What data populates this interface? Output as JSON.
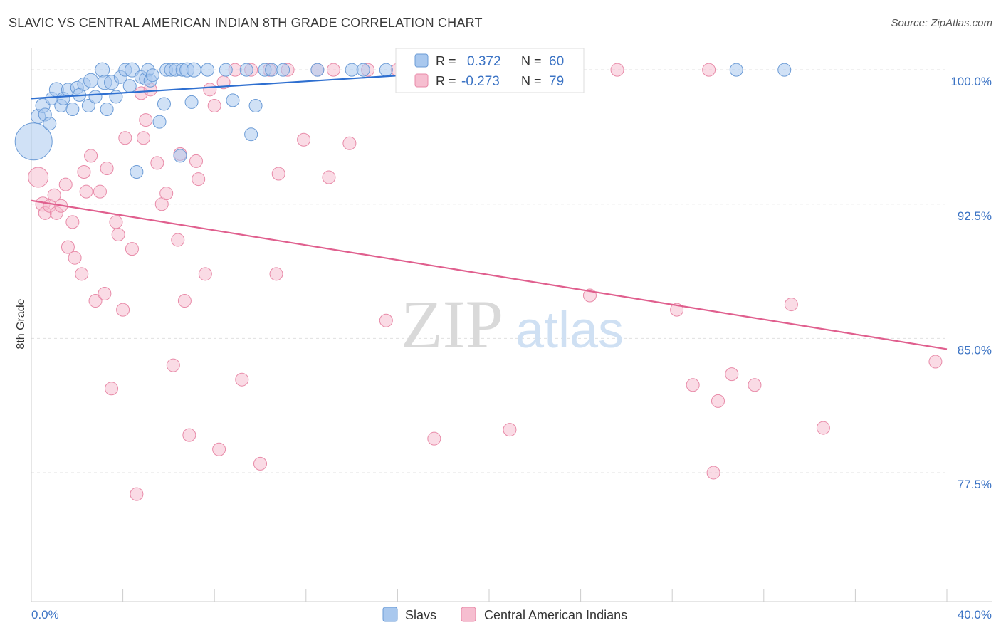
{
  "header": {
    "title": "SLAVIC VS CENTRAL AMERICAN INDIAN 8TH GRADE CORRELATION CHART",
    "source": "Source: ZipAtlas.com"
  },
  "watermark": {
    "zip": "ZIP",
    "atlas": "atlas"
  },
  "legend": {
    "r_label": "R =",
    "n_label": "N =",
    "slavs": {
      "r": "0.372",
      "n": "60"
    },
    "cai": {
      "r": "-0.273",
      "n": "79"
    }
  },
  "colors": {
    "slavs_fill": "#a9c8ee",
    "slavs_stroke": "#6b9bd6",
    "slavs_line": "#2e6fd0",
    "cai_fill": "#f6bed0",
    "cai_stroke": "#e88aa8",
    "cai_line": "#e05f8e",
    "tick_text": "#3b73c4",
    "grid": "#e0e0e0"
  },
  "chart_data": {
    "type": "scatter",
    "title": "SLAVIC VS CENTRAL AMERICAN INDIAN 8TH GRADE CORRELATION CHART",
    "xlabel": "",
    "ylabel": "8th Grade",
    "xlim": [
      0,
      40
    ],
    "ylim": [
      70.3,
      101.2
    ],
    "x_tick_labels": [
      "0.0%",
      "40.0%"
    ],
    "y_ticks": [
      {
        "value": 100.0,
        "label": "100.0%"
      },
      {
        "value": 92.5,
        "label": "92.5%"
      },
      {
        "value": 85.0,
        "label": "85.0%"
      },
      {
        "value": 77.5,
        "label": "77.5%"
      }
    ],
    "series": [
      {
        "name": "Slavs",
        "r": 0.372,
        "n": 60,
        "trend": {
          "x0": 0,
          "y0": 98.4,
          "x1": 20,
          "y1": 100.0
        },
        "points": [
          [
            0.1,
            96.0,
            26
          ],
          [
            0.3,
            97.4,
            10
          ],
          [
            0.5,
            98.0,
            10
          ],
          [
            0.6,
            97.5,
            9
          ],
          [
            0.8,
            97.0,
            9
          ],
          [
            0.9,
            98.4,
            9
          ],
          [
            1.1,
            98.9,
            10
          ],
          [
            1.3,
            98.0,
            9
          ],
          [
            1.4,
            98.4,
            9
          ],
          [
            1.6,
            98.9,
            9
          ],
          [
            1.8,
            97.8,
            9
          ],
          [
            2.0,
            99.0,
            9
          ],
          [
            2.1,
            98.6,
            9
          ],
          [
            2.3,
            99.2,
            9
          ],
          [
            2.5,
            98.0,
            9
          ],
          [
            2.6,
            99.4,
            10
          ],
          [
            2.8,
            98.5,
            9
          ],
          [
            3.1,
            100.0,
            10
          ],
          [
            3.2,
            99.3,
            10
          ],
          [
            3.3,
            97.8,
            9
          ],
          [
            3.5,
            99.3,
            10
          ],
          [
            3.7,
            98.5,
            9
          ],
          [
            3.9,
            99.6,
            9
          ],
          [
            4.1,
            100.0,
            9
          ],
          [
            4.3,
            99.1,
            9
          ],
          [
            4.4,
            100.0,
            10
          ],
          [
            4.6,
            94.3,
            9
          ],
          [
            4.8,
            99.6,
            9
          ],
          [
            5.0,
            99.5,
            9
          ],
          [
            5.1,
            100.0,
            9
          ],
          [
            5.2,
            99.4,
            9
          ],
          [
            5.3,
            99.7,
            9
          ],
          [
            5.6,
            97.1,
            9
          ],
          [
            5.8,
            98.1,
            9
          ],
          [
            5.9,
            100.0,
            9
          ],
          [
            6.1,
            100.0,
            9
          ],
          [
            6.3,
            100.0,
            9
          ],
          [
            6.5,
            95.2,
            9
          ],
          [
            6.6,
            100.0,
            9
          ],
          [
            6.8,
            100.0,
            10
          ],
          [
            7.0,
            98.2,
            9
          ],
          [
            7.1,
            100.0,
            10
          ],
          [
            7.7,
            100.0,
            9
          ],
          [
            8.5,
            100.0,
            9
          ],
          [
            8.8,
            98.3,
            9
          ],
          [
            9.4,
            100.0,
            9
          ],
          [
            9.6,
            96.4,
            9
          ],
          [
            9.8,
            98.0,
            9
          ],
          [
            10.2,
            100.0,
            9
          ],
          [
            10.5,
            100.0,
            9
          ],
          [
            11.0,
            100.0,
            9
          ],
          [
            12.5,
            100.0,
            9
          ],
          [
            14.0,
            100.0,
            9
          ],
          [
            14.5,
            100.0,
            9
          ],
          [
            15.5,
            100.0,
            9
          ],
          [
            16.6,
            100.0,
            10
          ],
          [
            18.1,
            100.0,
            10
          ],
          [
            18.9,
            100.0,
            9
          ],
          [
            30.8,
            100.0,
            9
          ],
          [
            32.9,
            100.0,
            9
          ]
        ]
      },
      {
        "name": "Central American Indians",
        "r": -0.273,
        "n": 79,
        "trend": {
          "x0": 0,
          "y0": 92.7,
          "x1": 40,
          "y1": 84.4
        },
        "points": [
          [
            0.3,
            94.0,
            14
          ],
          [
            0.5,
            92.5,
            10
          ],
          [
            0.6,
            92.0,
            9
          ],
          [
            0.8,
            92.4,
            9
          ],
          [
            1.0,
            93.0,
            9
          ],
          [
            1.1,
            92.0,
            9
          ],
          [
            1.3,
            92.4,
            9
          ],
          [
            1.5,
            93.6,
            9
          ],
          [
            1.6,
            90.1,
            9
          ],
          [
            1.8,
            91.5,
            9
          ],
          [
            1.9,
            89.5,
            9
          ],
          [
            2.2,
            88.6,
            9
          ],
          [
            2.3,
            94.3,
            9
          ],
          [
            2.4,
            93.2,
            9
          ],
          [
            2.6,
            95.2,
            9
          ],
          [
            2.8,
            87.1,
            9
          ],
          [
            3.0,
            93.2,
            9
          ],
          [
            3.2,
            87.5,
            9
          ],
          [
            3.3,
            94.5,
            9
          ],
          [
            3.5,
            82.2,
            9
          ],
          [
            3.7,
            91.5,
            9
          ],
          [
            3.8,
            90.8,
            9
          ],
          [
            4.0,
            86.6,
            9
          ],
          [
            4.1,
            96.2,
            9
          ],
          [
            4.4,
            90.0,
            9
          ],
          [
            4.6,
            76.3,
            9
          ],
          [
            4.8,
            98.7,
            9
          ],
          [
            4.9,
            96.2,
            9
          ],
          [
            5.0,
            97.2,
            9
          ],
          [
            5.2,
            98.9,
            9
          ],
          [
            5.5,
            94.8,
            9
          ],
          [
            5.7,
            92.5,
            9
          ],
          [
            5.9,
            93.1,
            9
          ],
          [
            6.2,
            83.5,
            9
          ],
          [
            6.4,
            90.5,
            9
          ],
          [
            6.5,
            95.3,
            9
          ],
          [
            6.7,
            87.1,
            9
          ],
          [
            6.9,
            79.6,
            9
          ],
          [
            7.2,
            94.9,
            9
          ],
          [
            7.3,
            93.9,
            9
          ],
          [
            7.6,
            88.6,
            9
          ],
          [
            7.8,
            98.9,
            9
          ],
          [
            8.0,
            98.0,
            9
          ],
          [
            8.2,
            78.8,
            9
          ],
          [
            8.4,
            99.3,
            9
          ],
          [
            8.9,
            100.0,
            9
          ],
          [
            9.2,
            82.7,
            9
          ],
          [
            9.6,
            100.0,
            9
          ],
          [
            10.0,
            78.0,
            9
          ],
          [
            10.4,
            100.0,
            9
          ],
          [
            10.7,
            88.6,
            9
          ],
          [
            10.8,
            94.2,
            9
          ],
          [
            11.2,
            100.0,
            9
          ],
          [
            11.9,
            96.1,
            9
          ],
          [
            12.5,
            100.0,
            9
          ],
          [
            13.0,
            94.0,
            9
          ],
          [
            13.2,
            100.0,
            9
          ],
          [
            13.9,
            95.9,
            9
          ],
          [
            14.7,
            100.0,
            9
          ],
          [
            15.5,
            86.0,
            9
          ],
          [
            16.0,
            100.0,
            9
          ],
          [
            17.6,
            79.4,
            9
          ],
          [
            18.0,
            100.0,
            9
          ],
          [
            19.1,
            100.0,
            9
          ],
          [
            20.9,
            79.9,
            9
          ],
          [
            22.0,
            100.0,
            9
          ],
          [
            23.0,
            100.0,
            9
          ],
          [
            24.4,
            87.4,
            9
          ],
          [
            25.6,
            100.0,
            9
          ],
          [
            28.2,
            86.6,
            9
          ],
          [
            28.9,
            82.4,
            9
          ],
          [
            29.6,
            100.0,
            9
          ],
          [
            30.0,
            81.5,
            9
          ],
          [
            29.8,
            77.5,
            9
          ],
          [
            30.6,
            83.0,
            9
          ],
          [
            31.6,
            82.4,
            9
          ],
          [
            33.2,
            86.9,
            9
          ],
          [
            34.6,
            80.0,
            9
          ],
          [
            39.5,
            83.7,
            9
          ]
        ]
      }
    ]
  },
  "bottom_legend": {
    "slavs": "Slavs",
    "cai": "Central American Indians"
  }
}
